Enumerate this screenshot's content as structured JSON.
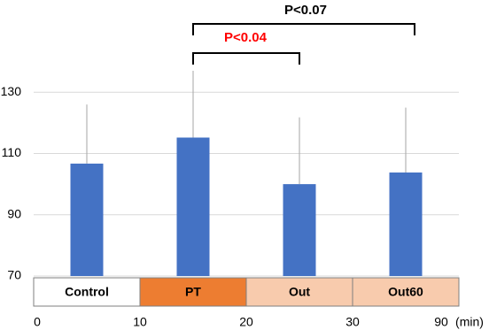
{
  "chart_data": {
    "type": "bar",
    "categories": [
      "Control",
      "PT",
      "Out",
      "Out60"
    ],
    "values": [
      106.7,
      115.2,
      100,
      103.8
    ],
    "errors": [
      19.3,
      21.8,
      21.8,
      21.2
    ],
    "color": "#4472c4",
    "ylim": [
      70,
      150
    ],
    "yticks": [
      70,
      90,
      110,
      130
    ],
    "grid": true,
    "phases": [
      {
        "label": "Control",
        "color": "#ffffff"
      },
      {
        "label": "PT",
        "color": "#ed7d31"
      },
      {
        "label": "Out",
        "color": "#f8cbad"
      },
      {
        "label": "Out60",
        "color": "#f8cbad"
      }
    ],
    "time_ticks": [
      0,
      10,
      20,
      30,
      90
    ],
    "time_unit": "(min)",
    "annotations": [
      {
        "text": "P<0.07",
        "from": "PT",
        "to": "Out60",
        "color": "#000000"
      },
      {
        "text": "P<0.04",
        "from": "PT",
        "to": "Out",
        "color": "#ff0000"
      }
    ]
  }
}
